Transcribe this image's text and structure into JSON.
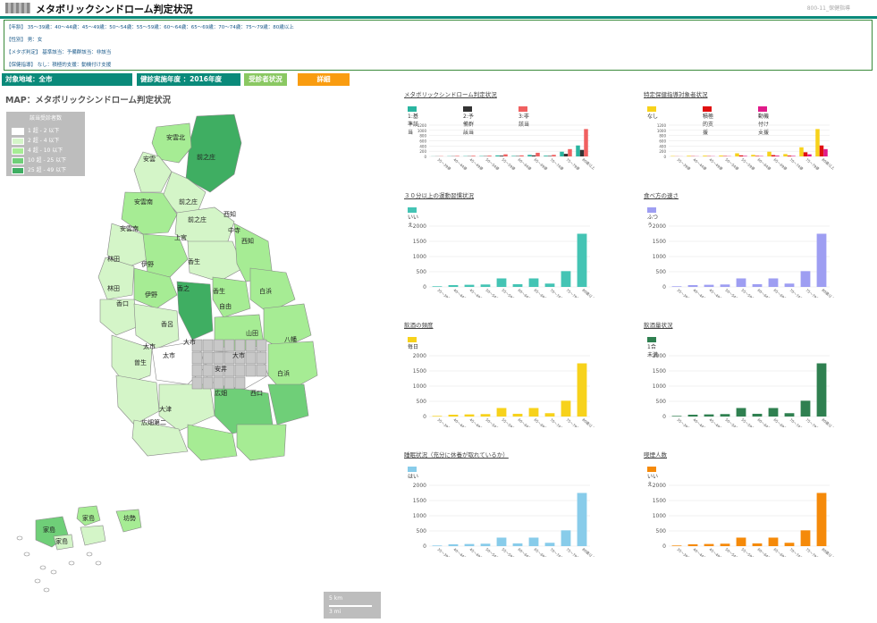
{
  "header": {
    "title": "メタボリックシンドローム判定状況",
    "right_text": "800-11_保健指導"
  },
  "filters": {
    "age": "【年齢】 35～39歳：40～44歳：45～49歳：50～54歳：55～59歳：60～64歳：65～69歳：70～74歳：75～79歳：80歳以上",
    "sex": "【性別】 男：女",
    "metabo": "【メタボ判定】 基準該当：予備群該当：非該当",
    "guidance": "【保健指導】 なし：積極的支援：動機付け支援"
  },
  "toolbar": {
    "area": "対象地域：全市",
    "year": "健診実施年度 ：2016年度",
    "status_button": "受診者状況",
    "detail_button": "詳細"
  },
  "map": {
    "title": "MAP：メタボリックシンドローム判定状況",
    "legend_title": "該当受診者数",
    "legend": [
      {
        "label": "1 超 - 2 以下",
        "color": "#ffffff"
      },
      {
        "label": "2 超 - 4 以下",
        "color": "#d4f5c8"
      },
      {
        "label": "4 超 - 10 以下",
        "color": "#a6ec94"
      },
      {
        "label": "10 超 - 25 以下",
        "color": "#6fcf78"
      },
      {
        "label": "25 超 - 49 以下",
        "color": "#3fae62"
      }
    ],
    "labels": [
      "安雲北",
      "安雲",
      "前之庄",
      "安雲南",
      "前之庄",
      "西知",
      "安雲南",
      "前之庄",
      "西知",
      "中寺",
      "上宮",
      "林田",
      "伊野",
      "香生",
      "香之",
      "林田",
      "伊野",
      "香生",
      "白浜",
      "自由",
      "山田",
      "香呂",
      "香口",
      "大市",
      "太市",
      "太市",
      "曽生",
      "大市",
      "八幡",
      "安井",
      "西口",
      "白浜",
      "広畑",
      "大津",
      "広畑第二",
      "家島",
      "家島",
      "坊勢",
      "家島"
    ],
    "scale_km": "5 km",
    "scale_mi": "3 mi"
  },
  "charts": {
    "categories": [
      "35～39歳",
      "40～44歳",
      "45～49歳",
      "50～54歳",
      "55～59歳",
      "60～64歳",
      "65～69歳",
      "70～74歳",
      "75～79歳",
      "80歳以上"
    ],
    "metabo": {
      "title": "メタボリックシンドローム判定状況",
      "legend": [
        "1:基準該当",
        "2:予備群該当",
        "3:非該当"
      ],
      "colors": [
        "#2ab5a0",
        "#333333",
        "#f06060"
      ],
      "yticks": [
        "1200",
        "1000",
        "800",
        "600",
        "400",
        "200",
        "0"
      ]
    },
    "guidance": {
      "title": "特定保健指導対象者状況",
      "legend": [
        "なし",
        "積極的支援",
        "動機付け支援"
      ],
      "colors": [
        "#f7d21b",
        "#e01010",
        "#e01a8a"
      ],
      "yticks": [
        "1200",
        "1000",
        "800",
        "600",
        "400",
        "200",
        "0"
      ]
    },
    "exercise": {
      "title": "３０分以上の運動習慣状況",
      "legend": "いいえ",
      "color": "#44c4b4"
    },
    "eating": {
      "title": "食べ方の速さ",
      "legend": "ふつう",
      "color": "#9e9ef2"
    },
    "drinking_freq": {
      "title": "飲酒の頻度",
      "legend": "毎日",
      "color": "#f7d21b"
    },
    "drinking_amount": {
      "title": "飲酒量状況",
      "legend": "1合未満",
      "color": "#2f8050"
    },
    "sleep": {
      "title": "睡眠状況（充分に休養が取れているか）",
      "legend": "はい",
      "color": "#88ccea"
    },
    "smoking": {
      "title": "喫煙人数",
      "legend": "いいえ",
      "color": "#f58a0a"
    },
    "yticks": [
      "2000",
      "1500",
      "1000",
      "500",
      "0"
    ]
  },
  "chart_data": [
    {
      "type": "bar",
      "title": "メタボリックシンドローム判定状況",
      "categories": [
        "35～39歳",
        "40～44歳",
        "45～49歳",
        "50～54歳",
        "55～59歳",
        "60～64歳",
        "65～69歳",
        "70～74歳",
        "75～79歳",
        "80歳以上"
      ],
      "ylim": [
        0,
        1200
      ],
      "series": [
        {
          "name": "1:基準該当",
          "values": [
            5,
            10,
            12,
            15,
            40,
            20,
            60,
            30,
            180,
            420
          ]
        },
        {
          "name": "2:予備群該当",
          "values": [
            5,
            8,
            10,
            12,
            30,
            15,
            40,
            20,
            100,
            250
          ]
        },
        {
          "name": "3:非該当",
          "values": [
            10,
            20,
            25,
            30,
            80,
            40,
            140,
            60,
            280,
            1050
          ]
        }
      ]
    },
    {
      "type": "bar",
      "title": "特定保健指導対象者状況",
      "categories": [
        "35～39歳",
        "40～44歳",
        "45～49歳",
        "50～54歳",
        "55～59歳",
        "60～64歳",
        "65～69歳",
        "70～74歳",
        "75～79歳",
        "80歳以上"
      ],
      "ylim": [
        0,
        1200
      ],
      "series": [
        {
          "name": "なし",
          "values": [
            15,
            25,
            30,
            35,
            120,
            60,
            180,
            90,
            350,
            1050
          ]
        },
        {
          "name": "積極的支援",
          "values": [
            5,
            10,
            12,
            15,
            40,
            20,
            50,
            30,
            160,
            420
          ]
        },
        {
          "name": "動機付け支援",
          "values": [
            3,
            6,
            8,
            10,
            20,
            15,
            30,
            20,
            80,
            280
          ]
        }
      ]
    },
    {
      "type": "bar",
      "title": "３０分以上の運動習慣状況",
      "categories": [
        "35～39歳",
        "40～44歳",
        "45～49歳",
        "50～54歳",
        "55～59歳",
        "60～64歳",
        "65～69歳",
        "70～74歳",
        "75～79歳",
        "80歳以上"
      ],
      "ylim": [
        0,
        2000
      ],
      "series": [
        {
          "name": "いいえ",
          "values": [
            20,
            60,
            70,
            80,
            280,
            90,
            280,
            110,
            520,
            1750
          ]
        }
      ]
    },
    {
      "type": "bar",
      "title": "食べ方の速さ",
      "categories": [
        "35～39歳",
        "40～44歳",
        "45～49歳",
        "50～54歳",
        "55～59歳",
        "60～64歳",
        "65～69歳",
        "70～74歳",
        "75～79歳",
        "80歳以上"
      ],
      "ylim": [
        0,
        2000
      ],
      "series": [
        {
          "name": "ふつう",
          "values": [
            20,
            60,
            70,
            80,
            280,
            90,
            280,
            110,
            520,
            1750
          ]
        }
      ]
    },
    {
      "type": "bar",
      "title": "飲酒の頻度",
      "categories": [
        "35～39歳",
        "40～44歳",
        "45～49歳",
        "50～54歳",
        "55～59歳",
        "60～64歳",
        "65～69歳",
        "70～74歳",
        "75～79歳",
        "80歳以上"
      ],
      "ylim": [
        0,
        2000
      ],
      "series": [
        {
          "name": "毎日",
          "values": [
            20,
            60,
            70,
            80,
            280,
            90,
            280,
            110,
            520,
            1750
          ]
        }
      ]
    },
    {
      "type": "bar",
      "title": "飲酒量状況",
      "categories": [
        "35～39歳",
        "40～44歳",
        "45～49歳",
        "50～54歳",
        "55～59歳",
        "60～64歳",
        "65～69歳",
        "70～74歳",
        "75～79歳",
        "80歳以上"
      ],
      "ylim": [
        0,
        2000
      ],
      "series": [
        {
          "name": "1合未満",
          "values": [
            20,
            60,
            70,
            80,
            280,
            90,
            280,
            110,
            520,
            1750
          ]
        }
      ]
    },
    {
      "type": "bar",
      "title": "睡眠状況（充分に休養が取れているか）",
      "categories": [
        "35～39歳",
        "40～44歳",
        "45～49歳",
        "50～54歳",
        "55～59歳",
        "60～64歳",
        "65～69歳",
        "70～74歳",
        "75～79歳",
        "80歳以上"
      ],
      "ylim": [
        0,
        2000
      ],
      "series": [
        {
          "name": "はい",
          "values": [
            20,
            60,
            70,
            80,
            280,
            90,
            280,
            110,
            520,
            1750
          ]
        }
      ]
    },
    {
      "type": "bar",
      "title": "喫煙人数",
      "categories": [
        "35～39歳",
        "40～44歳",
        "45～49歳",
        "50～54歳",
        "55～59歳",
        "60～64歳",
        "65～69歳",
        "70～74歳",
        "75～79歳",
        "80歳以上"
      ],
      "ylim": [
        0,
        2000
      ],
      "series": [
        {
          "name": "いいえ",
          "values": [
            20,
            60,
            70,
            80,
            280,
            90,
            280,
            110,
            520,
            1750
          ]
        }
      ]
    }
  ]
}
